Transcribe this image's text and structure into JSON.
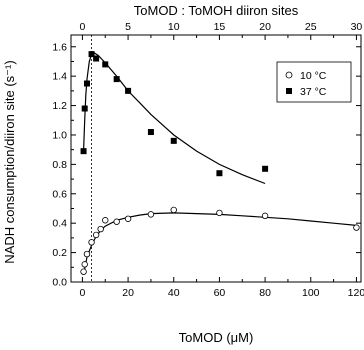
{
  "chart_data": {
    "type": "scatter",
    "title": "",
    "xlabel": "ToMOD (μM)",
    "ylabel": "NADH consumption/diiron site (s⁻¹)",
    "x2label": "ToMOD : ToMOH diiron sites",
    "xlim": [
      -5,
      122
    ],
    "ylim": [
      0,
      1.68
    ],
    "x2lim": [
      -1.25,
      30.5
    ],
    "xticks": [
      0,
      20,
      40,
      60,
      80,
      100,
      120
    ],
    "x2ticks": [
      0,
      5,
      10,
      15,
      20,
      25,
      30
    ],
    "yticks": [
      0.0,
      0.2,
      0.4,
      0.6,
      0.8,
      1.0,
      1.2,
      1.4,
      1.6
    ],
    "xtick_labels": [
      "0",
      "20",
      "40",
      "60",
      "80",
      "100",
      "120"
    ],
    "x2tick_labels": [
      "0",
      "5",
      "10",
      "15",
      "20",
      "25",
      "30"
    ],
    "ytick_labels": [
      "0.0",
      "0.2",
      "0.4",
      "0.6",
      "0.8",
      "1.0",
      "1.2",
      "1.4",
      "1.6"
    ],
    "reference_line_x": 4,
    "grid": false,
    "legend_position": "top-right",
    "series": [
      {
        "name": "10 °C",
        "marker": "open-circle",
        "color": "#000000",
        "points": [
          [
            0.5,
            0.07
          ],
          [
            1,
            0.12
          ],
          [
            2,
            0.19
          ],
          [
            4,
            0.27
          ],
          [
            6,
            0.32
          ],
          [
            8,
            0.36
          ],
          [
            10,
            0.42
          ],
          [
            15,
            0.41
          ],
          [
            20,
            0.43
          ],
          [
            30,
            0.46
          ],
          [
            40,
            0.49
          ],
          [
            60,
            0.47
          ],
          [
            80,
            0.45
          ],
          [
            120,
            0.37
          ]
        ],
        "fit": [
          [
            0.5,
            0.05
          ],
          [
            2,
            0.17
          ],
          [
            4,
            0.25
          ],
          [
            6,
            0.31
          ],
          [
            8,
            0.35
          ],
          [
            10,
            0.38
          ],
          [
            15,
            0.42
          ],
          [
            20,
            0.44
          ],
          [
            25,
            0.455
          ],
          [
            30,
            0.465
          ],
          [
            40,
            0.47
          ],
          [
            50,
            0.465
          ],
          [
            60,
            0.46
          ],
          [
            70,
            0.45
          ],
          [
            80,
            0.44
          ],
          [
            90,
            0.43
          ],
          [
            100,
            0.415
          ],
          [
            110,
            0.4
          ],
          [
            120,
            0.385
          ]
        ]
      },
      {
        "name": "37 °C",
        "marker": "filled-square",
        "color": "#000000",
        "points": [
          [
            0.5,
            0.89
          ],
          [
            1,
            1.18
          ],
          [
            2,
            1.35
          ],
          [
            4,
            1.55
          ],
          [
            6,
            1.52
          ],
          [
            10,
            1.48
          ],
          [
            15,
            1.38
          ],
          [
            20,
            1.3
          ],
          [
            30,
            1.02
          ],
          [
            40,
            0.96
          ],
          [
            60,
            0.74
          ],
          [
            80,
            0.77
          ]
        ],
        "fit": [
          [
            0.5,
            0.9
          ],
          [
            1,
            1.1
          ],
          [
            1.5,
            1.27
          ],
          [
            2,
            1.38
          ],
          [
            3,
            1.5
          ],
          [
            4,
            1.55
          ],
          [
            5,
            1.56
          ],
          [
            7,
            1.54
          ],
          [
            10,
            1.49
          ],
          [
            15,
            1.4
          ],
          [
            20,
            1.3
          ],
          [
            25,
            1.22
          ],
          [
            30,
            1.14
          ],
          [
            40,
            1.0
          ],
          [
            50,
            0.89
          ],
          [
            60,
            0.8
          ],
          [
            70,
            0.73
          ],
          [
            80,
            0.67
          ]
        ]
      }
    ]
  }
}
